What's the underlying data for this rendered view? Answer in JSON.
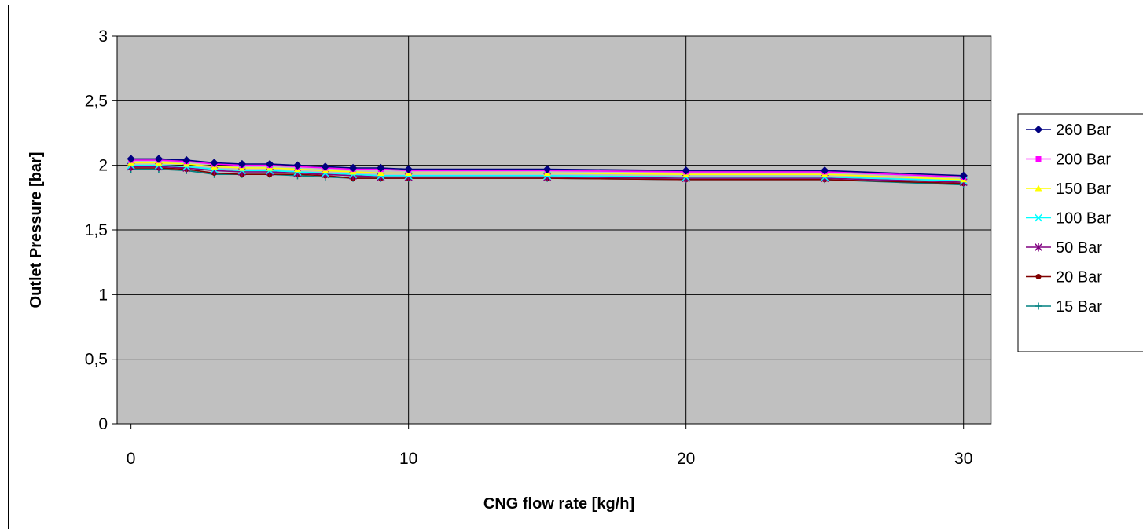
{
  "chart_data": {
    "type": "line",
    "title": "",
    "xlabel": "CNG flow rate [kg/h]",
    "ylabel": "Outlet Pressure [bar]",
    "xlim": [
      -0.5,
      31
    ],
    "ylim": [
      0,
      3
    ],
    "x_ticks": [
      0,
      10,
      20,
      30
    ],
    "y_ticks": [
      0,
      0.5,
      1,
      1.5,
      2,
      2.5,
      3
    ],
    "y_tick_labels": [
      "0",
      "0,5",
      "1",
      "1,5",
      "2",
      "2,5",
      "3"
    ],
    "grid": true,
    "plot_background": "#c0c0c0",
    "legend_position": "right",
    "x": [
      0,
      1,
      2,
      3,
      4,
      5,
      6,
      7,
      8,
      9,
      10,
      15,
      20,
      25,
      30
    ],
    "series": [
      {
        "name": "260 Bar",
        "color": "#000080",
        "marker": "diamond",
        "values": [
          2.05,
          2.05,
          2.04,
          2.02,
          2.01,
          2.01,
          2.0,
          1.99,
          1.98,
          1.98,
          1.97,
          1.97,
          1.96,
          1.96,
          1.92
        ]
      },
      {
        "name": "200 Bar",
        "color": "#ff00ff",
        "marker": "square",
        "values": [
          2.04,
          2.04,
          2.03,
          2.01,
          2.0,
          2.0,
          1.99,
          1.98,
          1.97,
          1.97,
          1.96,
          1.96,
          1.95,
          1.95,
          1.91
        ]
      },
      {
        "name": "150 Bar",
        "color": "#ffff00",
        "marker": "triangle",
        "values": [
          2.02,
          2.02,
          2.01,
          1.99,
          1.98,
          1.98,
          1.97,
          1.96,
          1.95,
          1.94,
          1.94,
          1.94,
          1.93,
          1.93,
          1.89
        ]
      },
      {
        "name": "100 Bar",
        "color": "#00ffff",
        "marker": "x",
        "values": [
          2.0,
          2.0,
          1.99,
          1.97,
          1.96,
          1.96,
          1.95,
          1.94,
          1.93,
          1.92,
          1.92,
          1.92,
          1.91,
          1.91,
          1.88
        ]
      },
      {
        "name": "50 Bar",
        "color": "#800080",
        "marker": "star",
        "values": [
          1.99,
          1.99,
          1.98,
          1.96,
          1.95,
          1.95,
          1.94,
          1.93,
          1.92,
          1.91,
          1.91,
          1.91,
          1.9,
          1.9,
          1.87
        ]
      },
      {
        "name": "20 Bar",
        "color": "#800000",
        "marker": "circle",
        "values": [
          1.98,
          1.98,
          1.97,
          1.94,
          1.93,
          1.93,
          1.93,
          1.92,
          1.9,
          1.9,
          1.9,
          1.9,
          1.89,
          1.89,
          1.86
        ]
      },
      {
        "name": "15 Bar",
        "color": "#008080",
        "marker": "plus",
        "values": [
          1.97,
          1.97,
          1.96,
          1.93,
          1.93,
          1.93,
          1.92,
          1.91,
          1.9,
          1.9,
          1.9,
          1.9,
          1.89,
          1.89,
          1.85
        ]
      }
    ]
  }
}
